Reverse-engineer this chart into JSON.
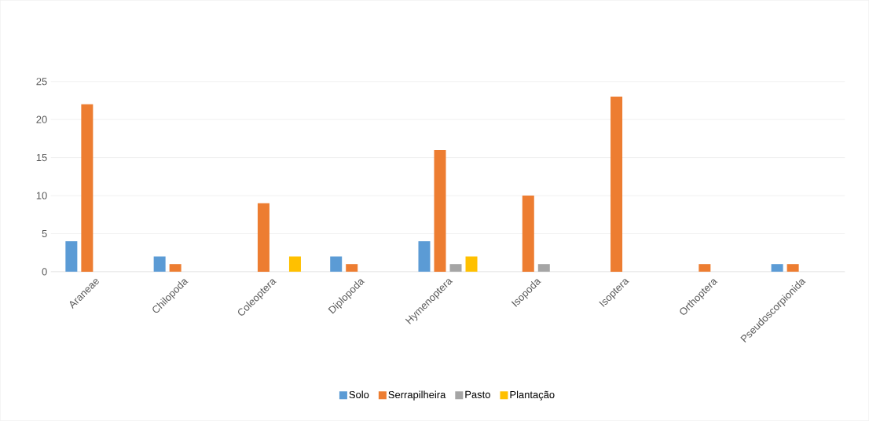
{
  "chart_data": {
    "type": "bar",
    "categories": [
      "Araneae",
      "Chilopoda",
      "Coleoptera",
      "Diplopoda",
      "Hymenoptera",
      "Isopoda",
      "Isoptera",
      "Orthoptera",
      "Pseudoscorpionida"
    ],
    "series": [
      {
        "name": "Solo",
        "color": "#5b9bd5",
        "values": [
          4,
          2,
          0,
          2,
          4,
          0,
          0,
          0,
          1
        ]
      },
      {
        "name": "Serrapilheira",
        "color": "#ed7d31",
        "values": [
          22,
          1,
          9,
          1,
          16,
          10,
          23,
          1,
          1
        ]
      },
      {
        "name": "Pasto",
        "color": "#a5a5a5",
        "values": [
          0,
          0,
          0,
          0,
          1,
          1,
          0,
          0,
          0
        ]
      },
      {
        "name": "Plantação",
        "color": "#ffc000",
        "values": [
          0,
          0,
          2,
          0,
          2,
          0,
          0,
          0,
          0
        ]
      }
    ],
    "ylim": [
      0,
      25
    ],
    "yticks": [
      0,
      5,
      10,
      15,
      20,
      25
    ],
    "grid": "y",
    "legend": "bottom"
  }
}
